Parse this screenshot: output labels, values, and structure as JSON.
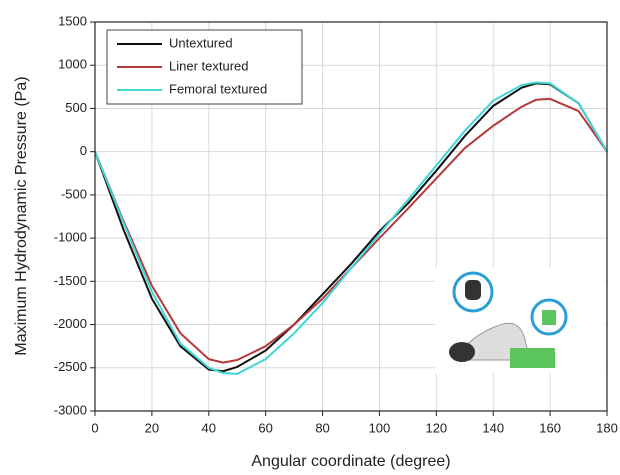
{
  "chart_data": {
    "type": "line",
    "x_label": "Angular coordinate (degree)",
    "y_label": "Maximum Hydrodynamic Pressure (Pa)",
    "x": [
      0,
      10,
      20,
      30,
      40,
      45,
      50,
      60,
      70,
      80,
      90,
      100,
      110,
      120,
      130,
      140,
      150,
      155,
      160,
      170,
      180
    ],
    "series": [
      {
        "name": "Untextured",
        "color": "#111111",
        "values": [
          0,
          -900,
          -1700,
          -2250,
          -2520,
          -2540,
          -2490,
          -2300,
          -2000,
          -1650,
          -1300,
          -920,
          -600,
          -220,
          180,
          530,
          740,
          790,
          780,
          560,
          0
        ]
      },
      {
        "name": "Liner textured",
        "color": "#b5383a",
        "values": [
          0,
          -800,
          -1550,
          -2100,
          -2400,
          -2440,
          -2410,
          -2250,
          -2000,
          -1700,
          -1350,
          -1000,
          -660,
          -310,
          40,
          300,
          520,
          600,
          610,
          470,
          0
        ]
      },
      {
        "name": "Femoral textured",
        "color": "#3fd6d6",
        "values": [
          0,
          -820,
          -1620,
          -2220,
          -2500,
          -2560,
          -2570,
          -2400,
          -2100,
          -1750,
          -1350,
          -950,
          -560,
          -160,
          240,
          590,
          770,
          800,
          790,
          560,
          0
        ]
      }
    ],
    "xlim": [
      0,
      180
    ],
    "xticks": [
      0,
      20,
      40,
      60,
      80,
      100,
      120,
      140,
      160,
      180
    ],
    "ylim": [
      -3000,
      1500
    ],
    "yticks": [
      -3000,
      -2500,
      -2000,
      -1500,
      -1000,
      -500,
      0,
      500,
      1000,
      1500
    ],
    "grid": true,
    "legend": "upper left"
  }
}
